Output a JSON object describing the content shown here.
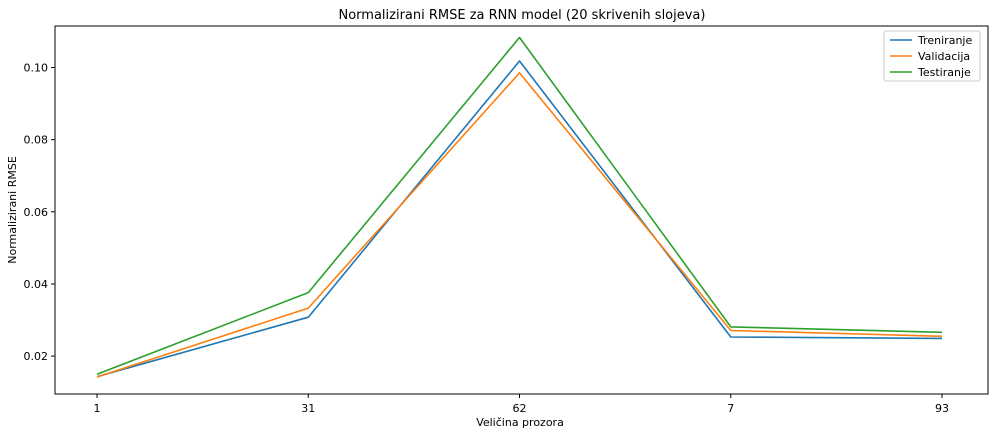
{
  "chart_data": {
    "type": "line",
    "title": "Normalizirani RMSE za RNN model (20 skrivenih slojeva)",
    "xlabel": "Veličina prozora",
    "ylabel": "Normalizirani RMSE",
    "categories": [
      "1",
      "31",
      "62",
      "7",
      "93"
    ],
    "yticks": [
      "0.02",
      "0.04",
      "0.06",
      "0.08",
      "0.10"
    ],
    "ylim": [
      0.0095,
      0.1115
    ],
    "grid": false,
    "legend_position": "top-right",
    "series": [
      {
        "name": "Treniranje",
        "color": "#1f77b4",
        "values": [
          0.0143,
          0.0308,
          0.1018,
          0.0253,
          0.0249
        ]
      },
      {
        "name": "Validacija",
        "color": "#ff7f0e",
        "values": [
          0.0142,
          0.0333,
          0.0985,
          0.0271,
          0.0255
        ]
      },
      {
        "name": "Testiranje",
        "color": "#2ca02c",
        "values": [
          0.015,
          0.0376,
          0.1083,
          0.0281,
          0.0266
        ]
      }
    ]
  }
}
